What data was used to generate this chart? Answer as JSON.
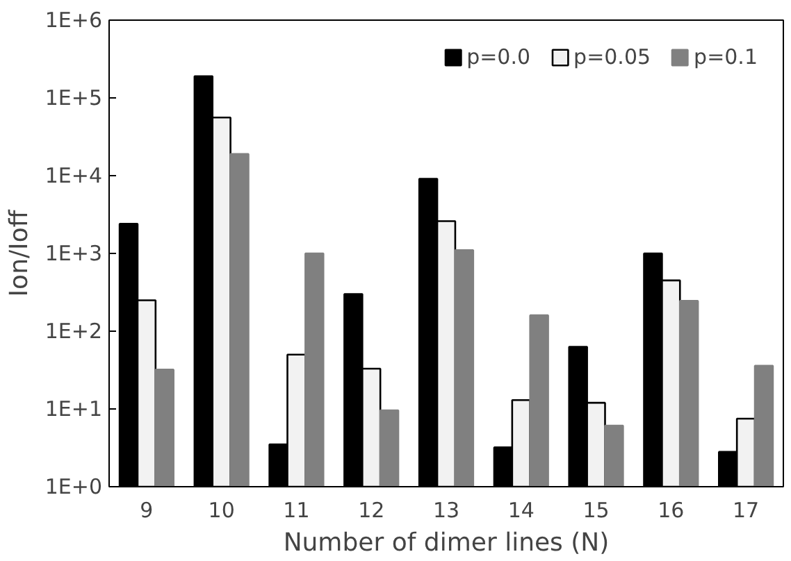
{
  "chart_data": {
    "type": "bar",
    "xlabel": "Number of dimer lines (N)",
    "ylabel": "Ion/Ioff",
    "categories": [
      "9",
      "10",
      "11",
      "12",
      "13",
      "14",
      "15",
      "16",
      "17"
    ],
    "series": [
      {
        "name": "p=0.0",
        "color": "#000000",
        "values": [
          2400,
          190000,
          3.5,
          300,
          9100,
          3.2,
          63,
          1000,
          2.8
        ]
      },
      {
        "name": "p=0.05",
        "color": "#f2f2f2",
        "values": [
          250,
          56000,
          50,
          33,
          2600,
          13,
          12,
          450,
          7.5
        ]
      },
      {
        "name": "p=0.1",
        "color": "#808080",
        "values": [
          32,
          19000,
          1000,
          9.6,
          1100,
          160,
          6.1,
          245,
          36
        ]
      }
    ],
    "log": "y",
    "ylim": [
      1,
      1000000
    ],
    "yticks": [
      {
        "value": 1,
        "label": "1E+0"
      },
      {
        "value": 10,
        "label": "1E+1"
      },
      {
        "value": 100,
        "label": "1E+2"
      },
      {
        "value": 1000,
        "label": "1E+3"
      },
      {
        "value": 10000,
        "label": "1E+4"
      },
      {
        "value": 100000,
        "label": "1E+5"
      },
      {
        "value": 1000000,
        "label": "1E+6"
      }
    ],
    "grid": false,
    "legend": "top right"
  }
}
